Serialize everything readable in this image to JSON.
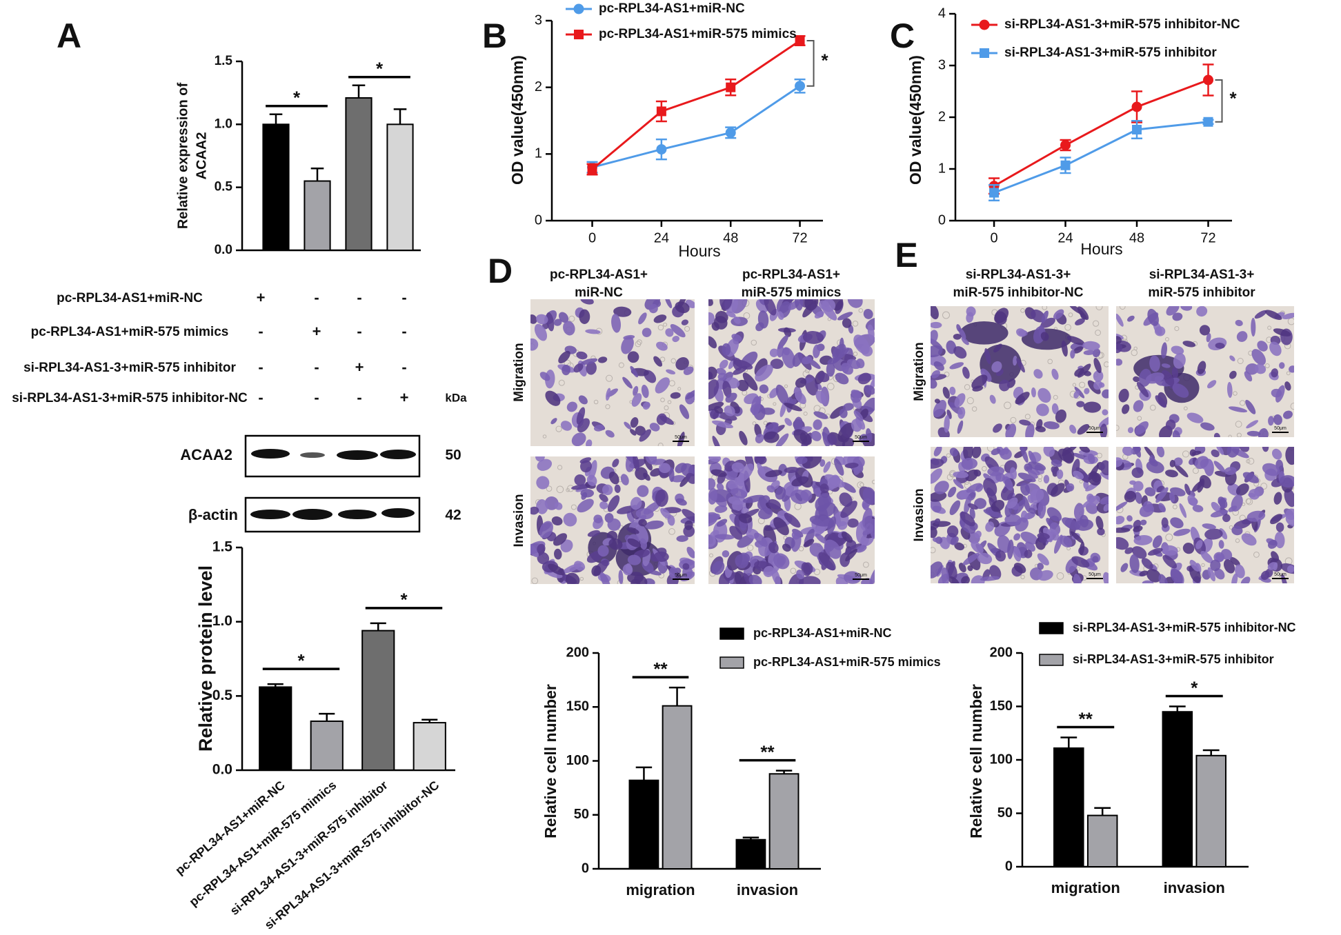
{
  "panel_labels": [
    "A",
    "B",
    "C",
    "D",
    "E"
  ],
  "design_table": {
    "rows": [
      {
        "label": "pc-RPL34-AS1+miR-NC",
        "signs": [
          "+",
          "-",
          "-",
          "-"
        ]
      },
      {
        "label": "pc-RPL34-AS1+miR-575 mimics",
        "signs": [
          "-",
          "+",
          "-",
          "-"
        ]
      },
      {
        "label": "si-RPL34-AS1-3+miR-575 inhibitor",
        "signs": [
          "-",
          "-",
          "+",
          "-"
        ]
      },
      {
        "label": "si-RPL34-AS1-3+miR-575 inhibitor-NC",
        "signs": [
          "-",
          "-",
          "-",
          "+"
        ]
      }
    ],
    "unit": "kDa"
  },
  "western_blot": {
    "bands": [
      {
        "label": "ACAA2",
        "kda": 50
      },
      {
        "label": "β-actin",
        "kda": 42
      }
    ]
  },
  "transwell": {
    "D": {
      "columns": [
        [
          "pc-RPL34-AS1+",
          "miR-NC"
        ],
        [
          "pc-RPL34-AS1+",
          "miR-575 mimics"
        ]
      ],
      "rows": [
        "Migration",
        "Invasion"
      ]
    },
    "E": {
      "columns": [
        [
          "si-RPL34-AS1-3+",
          "miR-575 inhibitor-NC"
        ],
        [
          "si-RPL34-AS1-3+",
          "miR-575 inhibitor"
        ]
      ],
      "rows": [
        "Migration",
        "Invasion"
      ]
    },
    "scale_label": "50μm"
  },
  "chart_data": [
    {
      "type": "bar",
      "y_label": [
        "Relative expression of",
        "ACAA2"
      ],
      "values": [
        1.0,
        0.55,
        1.21,
        1.0
      ],
      "errors": [
        0.08,
        0.1,
        0.1,
        0.12
      ],
      "colors": [
        "#000000",
        "#a3a3a8",
        "#6e6e6e",
        "#d6d6d6"
      ],
      "ylim": [
        0,
        1.5
      ],
      "yticks": [
        {
          "value": 0,
          "label": "0.0"
        },
        0.5,
        {
          "value": 1,
          "label": "1.0"
        },
        1.5
      ],
      "annotations": [
        "*",
        "*"
      ]
    },
    {
      "type": "line",
      "x_label": "Hours",
      "y_label": "OD value(450nm)",
      "x": [
        0,
        24,
        48,
        72
      ],
      "xlim": [
        -14,
        80
      ],
      "xticks": [
        0,
        24,
        48,
        72
      ],
      "ylim": [
        0,
        3
      ],
      "yticks": [
        0,
        1,
        2,
        3
      ],
      "series": [
        {
          "name": "pc-RPL34-AS1+miR-NC",
          "color": "#4f9be8",
          "marker": "circle",
          "values": [
            0.8,
            1.07,
            1.32,
            2.02
          ],
          "errors": [
            0.08,
            0.15,
            0.08,
            0.1
          ]
        },
        {
          "name": "pc-RPL34-AS1+miR-575 mimics",
          "color": "#e8191c",
          "marker": "square",
          "values": [
            0.77,
            1.64,
            2.0,
            2.7
          ],
          "errors": [
            0.08,
            0.15,
            0.12,
            0.07
          ]
        }
      ],
      "annotations": [
        "*"
      ]
    },
    {
      "type": "line",
      "x_label": "Hours",
      "y_label": "OD value(450nm)",
      "x": [
        0,
        24,
        48,
        72
      ],
      "xlim": [
        -13,
        80
      ],
      "xticks": [
        0,
        24,
        48,
        72
      ],
      "ylim": [
        0,
        4
      ],
      "yticks": [
        0,
        1,
        2,
        3,
        4
      ],
      "series": [
        {
          "name": "si-RPL34-AS1-3+miR-575 inhibitor-NC",
          "color": "#e8191c",
          "marker": "circle",
          "values": [
            0.67,
            1.46,
            2.2,
            2.72
          ],
          "errors": [
            0.15,
            0.1,
            0.3,
            0.3
          ]
        },
        {
          "name": "si-RPL34-AS1-3+miR-575 inhibitor",
          "color": "#4f9be8",
          "marker": "square",
          "values": [
            0.54,
            1.07,
            1.76,
            1.91
          ],
          "errors": [
            0.15,
            0.15,
            0.17,
            0.04
          ]
        }
      ],
      "annotations": [
        "*"
      ]
    },
    {
      "type": "bar",
      "y_label": "Relative protein level",
      "categories": [
        "pc-RPL34-AS1+miR-NC",
        "pc-RPL34-AS1+miR-575 mimics",
        "si-RPL34-AS1-3+miR-575 inhibitor",
        "si-RPL34-AS1-3+miR-575 inhibitor-NC"
      ],
      "values": [
        0.56,
        0.33,
        0.94,
        0.32
      ],
      "errors": [
        0.02,
        0.05,
        0.05,
        0.02
      ],
      "colors": [
        "#000000",
        "#a3a3a8",
        "#6e6e6e",
        "#d6d6d6"
      ],
      "ylim": [
        0,
        1.5
      ],
      "yticks": [
        {
          "value": 0,
          "label": "0.0"
        },
        0.5,
        {
          "value": 1,
          "label": "1.0"
        },
        1.5
      ],
      "annotations": [
        "*",
        "*"
      ]
    },
    {
      "type": "bar",
      "y_label": "Relative cell number",
      "categories": [
        "migration",
        "invasion"
      ],
      "series": [
        {
          "name": "pc-RPL34-AS1+miR-NC",
          "color": "#000000",
          "values": [
            82,
            27
          ],
          "errors": [
            12,
            2
          ]
        },
        {
          "name": "pc-RPL34-AS1+miR-575 mimics",
          "color": "#a3a3a8",
          "values": [
            151,
            88
          ],
          "errors": [
            17,
            3
          ]
        }
      ],
      "ylim": [
        0,
        200
      ],
      "yticks": [
        0,
        50,
        100,
        150,
        200
      ],
      "annotations": [
        "**",
        "**"
      ]
    },
    {
      "type": "bar",
      "y_label": "Relative cell number",
      "categories": [
        "migration",
        "invasion"
      ],
      "series": [
        {
          "name": "si-RPL34-AS1-3+miR-575 inhibitor-NC",
          "color": "#000000",
          "values": [
            111,
            145
          ],
          "errors": [
            10,
            5
          ]
        },
        {
          "name": "si-RPL34-AS1-3+miR-575 inhibitor",
          "color": "#a3a3a8",
          "values": [
            48,
            104
          ],
          "errors": [
            7,
            5
          ]
        }
      ],
      "ylim": [
        0,
        200
      ],
      "yticks": [
        0,
        50,
        100,
        150,
        200
      ],
      "annotations": [
        "**",
        "*"
      ]
    }
  ]
}
